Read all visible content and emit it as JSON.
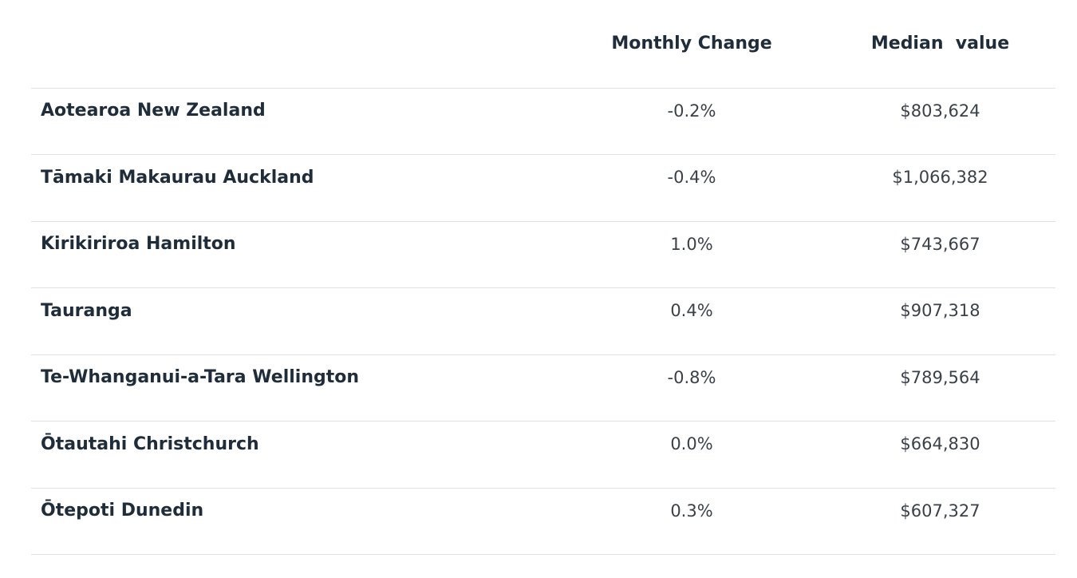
{
  "table": {
    "columns": [
      "Monthly Change",
      "Median  value"
    ],
    "rows": [
      [
        "Aotearoa New Zealand",
        "-0.2%",
        "$803,624"
      ],
      [
        "Tāmaki Makaurau Auckland",
        "-0.4%",
        "$1,066,382"
      ],
      [
        "Kirikiriroa Hamilton",
        "1.0%",
        "$743,667"
      ],
      [
        "Tauranga",
        "0.4%",
        "$907,318"
      ],
      [
        "Te-Whanganui-a-Tara Wellington",
        "-0.8%",
        "$789,564"
      ],
      [
        "Ōtautahi Christchurch",
        "0.0%",
        "$664,830"
      ],
      [
        "Ōtepoti Dunedin",
        "0.3%",
        "$607,327"
      ]
    ]
  }
}
